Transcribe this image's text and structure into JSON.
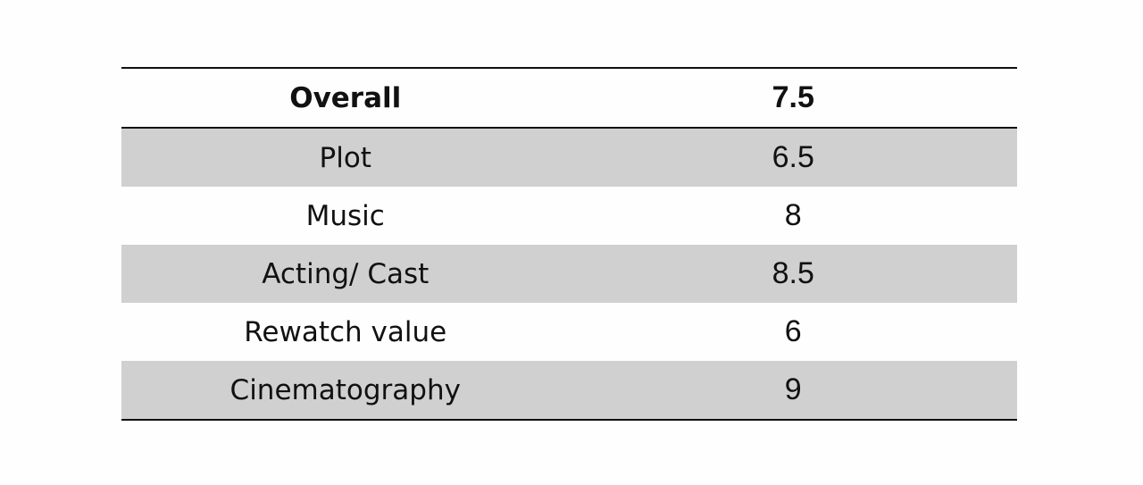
{
  "table": {
    "header": [
      "Overall",
      "7.5"
    ],
    "rows": [
      [
        "Plot",
        "6.5"
      ],
      [
        "Music",
        "8"
      ],
      [
        "Acting/ Cast",
        "8.5"
      ],
      [
        "Rewatch value",
        "6"
      ],
      [
        "Cinematography",
        "9"
      ]
    ]
  }
}
